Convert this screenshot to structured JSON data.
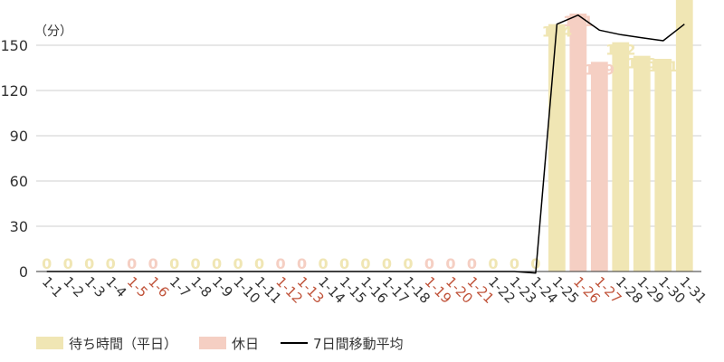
{
  "chart_data": {
    "type": "bar",
    "ylabel": "（分）",
    "ylim": [
      0,
      180
    ],
    "yticks": [
      0,
      30,
      60,
      90,
      120,
      150
    ],
    "grid": true,
    "categories": [
      "1-1",
      "1-2",
      "1-3",
      "1-4",
      "1-5",
      "1-6",
      "1-7",
      "1-8",
      "1-9",
      "1-10",
      "1-11",
      "1-12",
      "1-13",
      "1-14",
      "1-15",
      "1-16",
      "1-17",
      "1-18",
      "1-19",
      "1-20",
      "1-21",
      "1-22",
      "1-23",
      "1-24",
      "1-25",
      "1-26",
      "1-27",
      "1-28",
      "1-29",
      "1-30",
      "1-31"
    ],
    "values": [
      0,
      0,
      0,
      0,
      0,
      0,
      0,
      0,
      0,
      0,
      0,
      0,
      0,
      0,
      0,
      0,
      0,
      0,
      0,
      0,
      0,
      0,
      0,
      0,
      164,
      171,
      139,
      152,
      143,
      141,
      180
    ],
    "value_labels": [
      "0",
      "0",
      "0",
      "0",
      "0",
      "0",
      "0",
      "0",
      "0",
      "0",
      "0",
      "0",
      "0",
      "0",
      "0",
      "0",
      "0",
      "0",
      "0",
      "0",
      "0",
      "0",
      "0",
      "0",
      "164",
      "171",
      "139",
      "152",
      "143",
      "141",
      ""
    ],
    "holidays": [
      "1-5",
      "1-6",
      "1-12",
      "1-13",
      "1-19",
      "1-20",
      "1-21",
      "1-26",
      "1-27"
    ],
    "moving_average": [
      0,
      0,
      0,
      0,
      0,
      0,
      0,
      0,
      0,
      0,
      0,
      0,
      0,
      0,
      0,
      0,
      0,
      0,
      0,
      0,
      0,
      0,
      0,
      -1,
      164,
      170,
      160,
      157,
      155,
      153,
      164
    ],
    "colors": {
      "weekday": "#f0e6b4",
      "holiday": "#f5cfc3",
      "weekday_label": "#333333",
      "holiday_label": "#c0533a",
      "moving_average": "#000000",
      "grid": "#cfcfcf"
    },
    "legend": [
      {
        "label": "待ち時間（平日）",
        "kind": "weekday"
      },
      {
        "label": "休日",
        "kind": "holiday"
      },
      {
        "label": "7日間移動平均",
        "kind": "line"
      }
    ]
  }
}
